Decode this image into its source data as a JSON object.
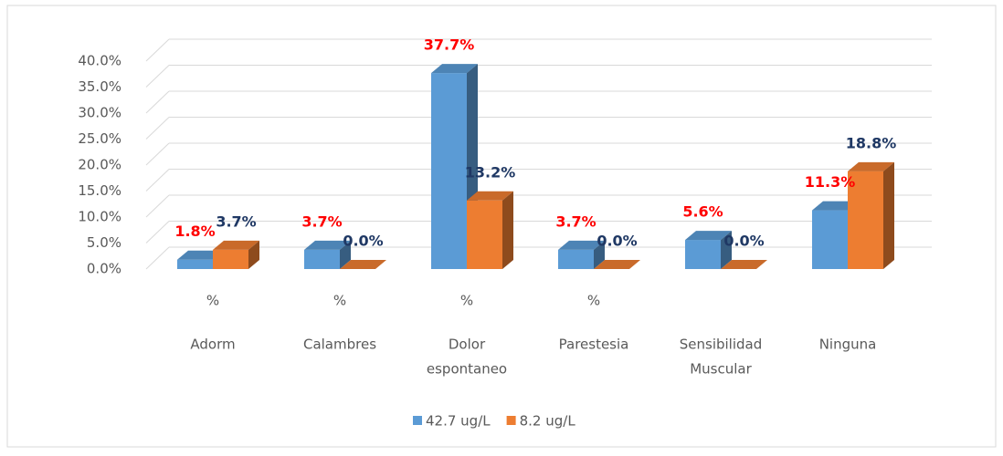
{
  "chart_data": {
    "type": "bar3d",
    "categories": [
      [
        "%",
        "Adorm"
      ],
      [
        "%",
        "Calambres"
      ],
      [
        "%",
        "Dolor",
        "espontaneo"
      ],
      [
        "%",
        "Parestesia"
      ],
      [
        "Sensibilidad",
        "Muscular"
      ],
      [
        "Ninguna"
      ]
    ],
    "series": [
      {
        "name": "42.7 ug/L",
        "color": "#5b9bd5",
        "label_color": "#ff0000",
        "values": [
          1.8,
          3.7,
          37.7,
          3.7,
          5.6,
          11.3
        ],
        "value_labels": [
          "1.8%",
          "3.7%",
          "37.7%",
          "3.7%",
          "5.6%",
          "11.3%"
        ]
      },
      {
        "name": "8.2 ug/L",
        "color": "#ed7d31",
        "label_color": "#1f3864",
        "values": [
          3.7,
          0,
          13.2,
          0,
          0,
          18.8
        ],
        "value_labels": [
          "3.7%",
          "0.0%",
          "13.2%",
          "0.0%",
          "0.0%",
          "18.8%"
        ]
      }
    ],
    "ylim": [
      0,
      40
    ],
    "yticks": [
      {
        "value": 0,
        "label": "0.0%"
      },
      {
        "value": 5,
        "label": "5.0%"
      },
      {
        "value": 10,
        "label": "10.0%"
      },
      {
        "value": 15,
        "label": "15.0%"
      },
      {
        "value": 20,
        "label": "20.0%"
      },
      {
        "value": 25,
        "label": "25.0%"
      },
      {
        "value": 30,
        "label": "30.0%"
      },
      {
        "value": 35,
        "label": "35.0%"
      },
      {
        "value": 40,
        "label": "40.0%"
      }
    ],
    "grid": true,
    "legend": "bottom"
  }
}
